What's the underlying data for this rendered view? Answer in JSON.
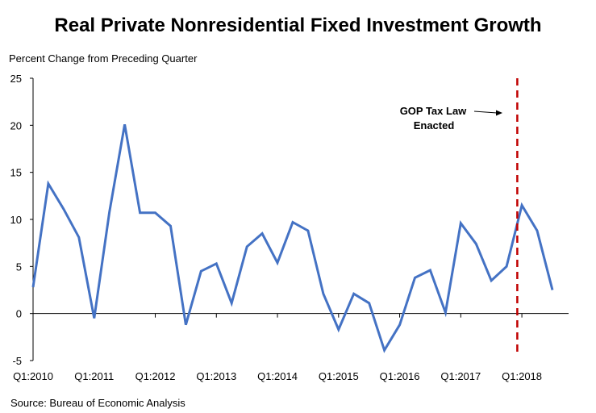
{
  "chart_data": {
    "type": "line",
    "title": "Real Private Nonresidential Fixed Investment Growth",
    "ylabel": "Percent Change from Preceding Quarter",
    "source": "Source:  Bureau of Economic Analysis",
    "ylim": [
      -5,
      25
    ],
    "yticks": [
      -5,
      0,
      5,
      10,
      15,
      20,
      25
    ],
    "xtick_labels": [
      "Q1:2010",
      "Q1:2011",
      "Q1:2012",
      "Q1:2013",
      "Q1:2014",
      "Q1:2015",
      "Q1:2016",
      "Q1:2017",
      "Q1:2018"
    ],
    "x": [
      "Q1:2010",
      "Q2:2010",
      "Q3:2010",
      "Q4:2010",
      "Q1:2011",
      "Q2:2011",
      "Q3:2011",
      "Q4:2011",
      "Q1:2012",
      "Q2:2012",
      "Q3:2012",
      "Q4:2012",
      "Q1:2013",
      "Q2:2013",
      "Q3:2013",
      "Q4:2013",
      "Q1:2014",
      "Q2:2014",
      "Q3:2014",
      "Q4:2014",
      "Q1:2015",
      "Q2:2015",
      "Q3:2015",
      "Q4:2015",
      "Q1:2016",
      "Q2:2016",
      "Q3:2016",
      "Q4:2016",
      "Q1:2017",
      "Q2:2017",
      "Q3:2017",
      "Q4:2017",
      "Q1:2018",
      "Q2:2018",
      "Q3:2018"
    ],
    "values": [
      2.8,
      13.8,
      11.1,
      8.1,
      -0.5,
      10.8,
      20.1,
      10.7,
      10.7,
      9.3,
      -1.2,
      4.5,
      5.3,
      1.1,
      7.1,
      8.5,
      5.4,
      9.7,
      8.8,
      2.1,
      -1.7,
      2.1,
      1.1,
      -3.9,
      -1.2,
      3.8,
      4.6,
      0.1,
      9.6,
      7.4,
      3.5,
      5.0,
      11.5,
      8.8,
      2.5
    ],
    "line_color": "#4472C4",
    "grid": false,
    "annotation": {
      "text_line1": "GOP Tax Law",
      "text_line2": "Enacted",
      "event": "between Q4:2017 and Q1:2018",
      "line_color": "#C00000",
      "line_style": "dashed"
    }
  }
}
